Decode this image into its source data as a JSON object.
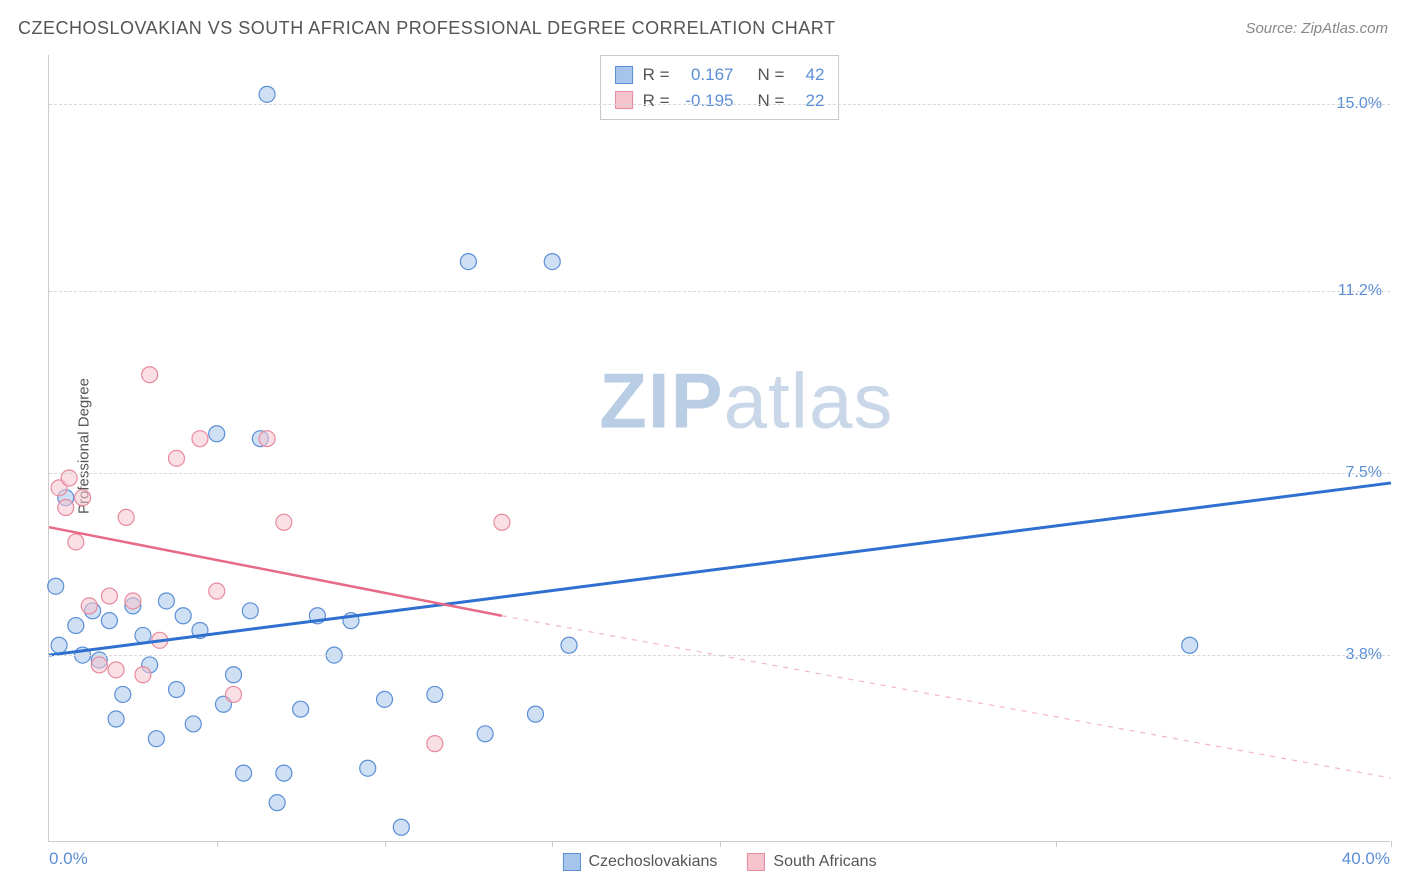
{
  "title": "CZECHOSLOVAKIAN VS SOUTH AFRICAN PROFESSIONAL DEGREE CORRELATION CHART",
  "source": "Source: ZipAtlas.com",
  "ylabel": "Professional Degree",
  "watermark_zip": "ZIP",
  "watermark_atlas": "atlas",
  "chart": {
    "type": "scatter",
    "xlim": [
      0,
      40
    ],
    "ylim": [
      0,
      16
    ],
    "x_min_label": "0.0%",
    "x_max_label": "40.0%",
    "y_ticks": [
      {
        "v": 3.8,
        "label": "3.8%"
      },
      {
        "v": 7.5,
        "label": "7.5%"
      },
      {
        "v": 11.2,
        "label": "11.2%"
      },
      {
        "v": 15.0,
        "label": "15.0%"
      }
    ],
    "x_ticks": [
      5,
      10,
      15,
      20,
      30,
      40
    ],
    "grid_color": "#d8d8d8",
    "background_color": "#ffffff",
    "series": [
      {
        "name": "Czechoslovakians",
        "fill": "#a7c5eb",
        "stroke": "#5b8fd6",
        "marker_radius": 8,
        "points": [
          [
            0.2,
            5.2
          ],
          [
            0.3,
            4.0
          ],
          [
            0.5,
            7.0
          ],
          [
            0.8,
            4.4
          ],
          [
            1.0,
            3.8
          ],
          [
            1.3,
            4.7
          ],
          [
            1.5,
            3.7
          ],
          [
            1.8,
            4.5
          ],
          [
            2.0,
            2.5
          ],
          [
            2.2,
            3.0
          ],
          [
            2.5,
            4.8
          ],
          [
            2.8,
            4.2
          ],
          [
            3.0,
            3.6
          ],
          [
            3.2,
            2.1
          ],
          [
            3.5,
            4.9
          ],
          [
            3.8,
            3.1
          ],
          [
            4.0,
            4.6
          ],
          [
            4.3,
            2.4
          ],
          [
            4.5,
            4.3
          ],
          [
            5.0,
            8.3
          ],
          [
            5.2,
            2.8
          ],
          [
            5.5,
            3.4
          ],
          [
            5.8,
            1.4
          ],
          [
            6.0,
            4.7
          ],
          [
            6.3,
            8.2
          ],
          [
            6.5,
            15.2
          ],
          [
            6.8,
            0.8
          ],
          [
            7.0,
            1.4
          ],
          [
            7.5,
            2.7
          ],
          [
            8.0,
            4.6
          ],
          [
            8.5,
            3.8
          ],
          [
            9.0,
            4.5
          ],
          [
            9.5,
            1.5
          ],
          [
            10.0,
            2.9
          ],
          [
            10.5,
            0.3
          ],
          [
            11.5,
            3.0
          ],
          [
            12.5,
            11.8
          ],
          [
            13.0,
            2.2
          ],
          [
            14.5,
            2.6
          ],
          [
            15.0,
            11.8
          ],
          [
            15.5,
            4.0
          ],
          [
            34.0,
            4.0
          ]
        ],
        "trend": {
          "x1": 0,
          "y1": 3.8,
          "x2": 40,
          "y2": 7.3,
          "color": "#2f6fcf",
          "width": 3
        }
      },
      {
        "name": "South Africans",
        "fill": "#f6c4cd",
        "stroke": "#e88a9e",
        "marker_radius": 8,
        "points": [
          [
            0.3,
            7.2
          ],
          [
            0.5,
            6.8
          ],
          [
            0.6,
            7.4
          ],
          [
            0.8,
            6.1
          ],
          [
            1.0,
            7.0
          ],
          [
            1.2,
            4.8
          ],
          [
            1.5,
            3.6
          ],
          [
            1.8,
            5.0
          ],
          [
            2.0,
            3.5
          ],
          [
            2.3,
            6.6
          ],
          [
            2.5,
            4.9
          ],
          [
            2.8,
            3.4
          ],
          [
            3.0,
            9.5
          ],
          [
            3.3,
            4.1
          ],
          [
            3.8,
            7.8
          ],
          [
            4.5,
            8.2
          ],
          [
            5.0,
            5.1
          ],
          [
            5.5,
            3.0
          ],
          [
            6.5,
            8.2
          ],
          [
            7.0,
            6.5
          ],
          [
            11.5,
            2.0
          ],
          [
            13.5,
            6.5
          ]
        ],
        "trend_solid": {
          "x1": 0,
          "y1": 6.4,
          "x2": 13.5,
          "y2": 4.6,
          "color": "#e76a87",
          "width": 2.5
        },
        "trend_dashed": {
          "x1": 13.5,
          "y1": 4.6,
          "x2": 40,
          "y2": 1.3,
          "color": "#f2b7c2",
          "width": 1.2
        }
      }
    ],
    "legend_bottom": [
      {
        "label": "Czechoslovakians",
        "fill": "#a7c5eb",
        "stroke": "#5b8fd6"
      },
      {
        "label": "South Africans",
        "fill": "#f6c4cd",
        "stroke": "#e88a9e"
      }
    ],
    "stats": [
      {
        "swatch_fill": "#a7c5eb",
        "swatch_stroke": "#5b8fd6",
        "r_label": "R =",
        "r": "0.167",
        "n_label": "N =",
        "n": "42"
      },
      {
        "swatch_fill": "#f6c4cd",
        "swatch_stroke": "#e88a9e",
        "r_label": "R =",
        "r": "-0.195",
        "n_label": "N =",
        "n": "22"
      }
    ]
  }
}
